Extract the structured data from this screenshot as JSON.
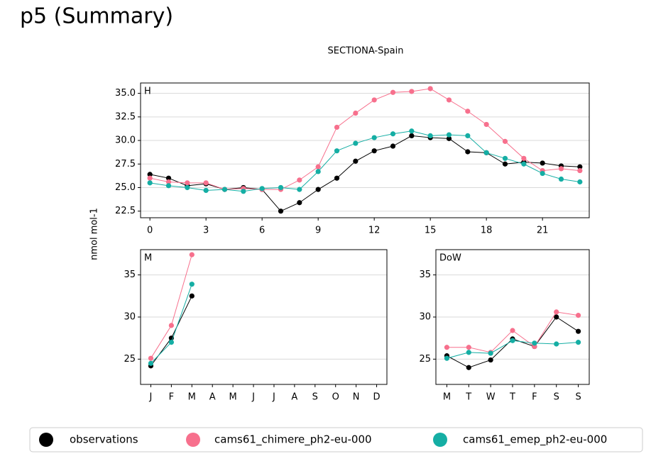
{
  "header": {
    "title": "p5 (Summary)"
  },
  "chart_data": [
    {
      "type": "line",
      "title": "SECTIONA-Spain",
      "ylabel": "nmol mol-1",
      "label": "H",
      "x": [
        0,
        1,
        2,
        3,
        4,
        5,
        6,
        7,
        8,
        9,
        10,
        11,
        12,
        13,
        14,
        15,
        16,
        17,
        18,
        19,
        20,
        21,
        22,
        23
      ],
      "xlim": [
        -0.5,
        23.5
      ],
      "xticks": [
        0,
        3,
        6,
        9,
        12,
        15,
        18,
        21
      ],
      "ylim": [
        21.8,
        36.1
      ],
      "yticks": [
        22.5,
        {
          "value": 25,
          "label": "25.0"
        },
        27.5,
        {
          "value": 30,
          "label": "30.0"
        },
        32.5,
        {
          "value": 35,
          "label": "35.0"
        }
      ],
      "grid": true,
      "series": [
        {
          "name": "observations",
          "color": "#000000",
          "values": [
            26.4,
            26.0,
            25.2,
            25.4,
            24.8,
            25.0,
            24.8,
            22.5,
            23.4,
            24.8,
            26.0,
            27.8,
            28.9,
            29.4,
            30.5,
            30.3,
            30.2,
            28.8,
            28.7,
            27.5,
            27.7,
            27.6,
            27.3,
            27.2
          ]
        },
        {
          "name": "cams61_chimere_ph2-eu-000",
          "color": "#f7708d",
          "values": [
            26.0,
            25.6,
            25.5,
            25.5,
            24.8,
            24.9,
            24.8,
            24.8,
            25.8,
            27.2,
            31.4,
            32.9,
            34.3,
            35.1,
            35.2,
            35.5,
            34.3,
            33.1,
            31.7,
            29.9,
            28.1,
            26.8,
            27.0,
            26.8
          ]
        },
        {
          "name": "cams61_emep_ph2-eu-000",
          "color": "#15aea4",
          "values": [
            25.5,
            25.2,
            25.0,
            24.7,
            24.8,
            24.6,
            24.9,
            25.0,
            24.8,
            26.7,
            28.9,
            29.7,
            30.3,
            30.7,
            31.0,
            30.5,
            30.6,
            30.5,
            28.7,
            28.1,
            27.5,
            26.5,
            25.9,
            25.6
          ]
        }
      ]
    },
    {
      "type": "line",
      "label": "M",
      "categories": [
        "J",
        "F",
        "M",
        "A",
        "M",
        "J",
        "J",
        "A",
        "S",
        "O",
        "N",
        "D"
      ],
      "ylim": [
        22,
        38
      ],
      "yticks": [
        25,
        30,
        35
      ],
      "grid": true,
      "series": [
        {
          "color": "#000000",
          "values": [
            24.2,
            27.5,
            32.5,
            null,
            null,
            null,
            null,
            null,
            null,
            null,
            null,
            null
          ]
        },
        {
          "color": "#f7708d",
          "values": [
            25.1,
            29.0,
            37.4,
            null,
            null,
            null,
            null,
            null,
            null,
            null,
            null,
            null
          ]
        },
        {
          "color": "#15aea4",
          "values": [
            24.5,
            27.0,
            33.9,
            null,
            null,
            null,
            null,
            null,
            null,
            null,
            null,
            null
          ]
        }
      ]
    },
    {
      "type": "line",
      "label": "DoW",
      "categories": [
        "M",
        "T",
        "W",
        "T",
        "F",
        "S",
        "S"
      ],
      "ylim": [
        22,
        38
      ],
      "yticks": [
        25,
        30,
        35
      ],
      "grid": true,
      "series": [
        {
          "color": "#000000",
          "values": [
            25.4,
            24.0,
            24.9,
            27.4,
            26.5,
            30.0,
            28.3
          ]
        },
        {
          "color": "#f7708d",
          "values": [
            26.4,
            26.4,
            25.8,
            28.4,
            26.5,
            30.6,
            30.2
          ]
        },
        {
          "color": "#15aea4",
          "values": [
            25.1,
            25.8,
            25.7,
            27.2,
            26.9,
            26.8,
            27.0
          ]
        }
      ]
    }
  ]
}
